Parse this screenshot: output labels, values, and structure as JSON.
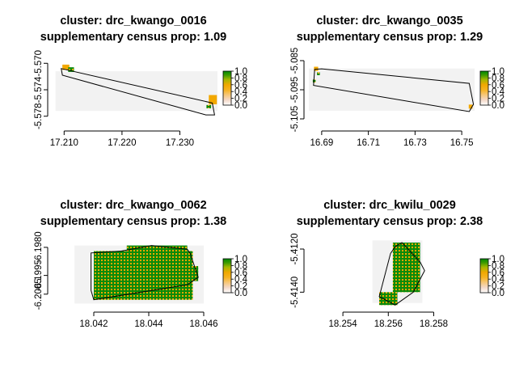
{
  "chart_data": [
    {
      "type": "heatmap",
      "title": "cluster: drc_kwango_0016",
      "subtitle": "supplementary census prop: 1.09",
      "xlim": [
        17.208,
        17.2365
      ],
      "ylim": [
        -5.5795,
        -5.5685
      ],
      "raster_extent": {
        "x": [
          17.2085,
          17.2365
        ],
        "y": [
          -5.5772,
          -5.5712
        ]
      },
      "xticks": [
        {
          "value": 17.21,
          "label": "17.210"
        },
        {
          "value": 17.22,
          "label": "17.220"
        },
        {
          "value": 17.23,
          "label": "17.230"
        }
      ],
      "yticks": [
        {
          "value": -5.57,
          "label": "-5.570"
        },
        {
          "value": -5.574,
          "label": "-5.574"
        },
        {
          "value": -5.578,
          "label": "-5.578"
        }
      ],
      "boundary": [
        [
          17.2095,
          -5.5708
        ],
        [
          17.2356,
          -5.576
        ],
        [
          17.236,
          -5.5778
        ],
        [
          17.2345,
          -5.5778
        ],
        [
          17.2097,
          -5.5718
        ]
      ],
      "cells": [
        {
          "x": 17.2097,
          "y": -5.571,
          "w": 0.0012,
          "h": 0.0008,
          "v": 0.2
        },
        {
          "x": 17.2107,
          "y": -5.5713,
          "w": 0.001,
          "h": 0.0007,
          "v": 0.8
        },
        {
          "x": 17.235,
          "y": -5.5762,
          "w": 0.0014,
          "h": 0.0014,
          "v": 0.2
        },
        {
          "x": 17.2346,
          "y": -5.5768,
          "w": 0.0008,
          "h": 0.0005,
          "v": 0.8
        }
      ],
      "legend": {
        "ticks": [
          0.0,
          0.2,
          0.4,
          0.6,
          0.8,
          1.0
        ]
      }
    },
    {
      "type": "heatmap",
      "title": "cluster: drc_kwango_0035",
      "subtitle": "supplementary census prop: 1.29",
      "xlim": [
        16.6845,
        16.7555
      ],
      "ylim": [
        -5.1075,
        -5.0825
      ],
      "raster_extent": {
        "x": [
          16.6845,
          16.7555
        ],
        "y": [
          -5.1022,
          -5.0877
        ]
      },
      "xticks": [
        {
          "value": 16.69,
          "label": "16.69"
        },
        {
          "value": 16.71,
          "label": "16.71"
        },
        {
          "value": 16.73,
          "label": "16.73"
        },
        {
          "value": 16.75,
          "label": "16.75"
        }
      ],
      "yticks": [
        {
          "value": -5.085,
          "label": "-5.085"
        },
        {
          "value": -5.095,
          "label": "-5.095"
        },
        {
          "value": -5.105,
          "label": "-5.105"
        }
      ],
      "boundary": [
        [
          16.687,
          -5.088
        ],
        [
          16.69,
          -5.0878
        ],
        [
          16.7532,
          -5.0928
        ],
        [
          16.755,
          -5.1
        ],
        [
          16.7532,
          -5.1025
        ],
        [
          16.6865,
          -5.0935
        ]
      ],
      "cells": [
        {
          "x": 16.6867,
          "y": -5.0885,
          "w": 0.0018,
          "h": 0.0014,
          "v": 0.2
        },
        {
          "x": 16.688,
          "y": -5.09,
          "w": 0.0012,
          "h": 0.001,
          "v": 0.8
        },
        {
          "x": 16.6862,
          "y": -5.0925,
          "w": 0.0012,
          "h": 0.001,
          "v": 0.8
        },
        {
          "x": 16.753,
          "y": -5.1015,
          "w": 0.0016,
          "h": 0.0014,
          "v": 0.2
        }
      ],
      "legend": {
        "ticks": [
          0.0,
          0.2,
          0.4,
          0.6,
          0.8,
          1.0
        ]
      }
    },
    {
      "type": "heatmap",
      "title": "cluster: drc_kwango_0062",
      "subtitle": "supplementary census prop: 1.38",
      "xlim": [
        18.0405,
        18.0465
      ],
      "ylim": [
        -6.2012,
        -6.1974
      ],
      "raster_extent": {
        "x": [
          18.0413,
          18.046
        ],
        "y": [
          -6.201,
          -6.1979
        ]
      },
      "xticks": [
        {
          "value": 18.042,
          "label": "18.042"
        },
        {
          "value": 18.044,
          "label": "18.044"
        },
        {
          "value": 18.046,
          "label": "18.046"
        }
      ],
      "yticks": [
        {
          "value": -6.198,
          "label": "-6.1980"
        },
        {
          "value": -6.1995,
          "label": "-6.1995"
        },
        {
          "value": -6.2005,
          "label": "-6.2005"
        }
      ],
      "boundary": [
        [
          18.0419,
          -6.2003
        ],
        [
          18.0419,
          -6.1983
        ],
        [
          18.043,
          -6.1982
        ],
        [
          18.0441,
          -6.1979
        ],
        [
          18.0454,
          -6.1981
        ],
        [
          18.0455,
          -6.1983
        ],
        [
          18.0458,
          -6.1996
        ],
        [
          18.0454,
          -6.2
        ],
        [
          18.042,
          -6.2008
        ]
      ],
      "cells": [
        {
          "x": 18.042,
          "y": -6.2008,
          "w": 0.0036,
          "h": 0.0026,
          "v": 0.75
        },
        {
          "x": 18.0432,
          "y": -6.1984,
          "w": 0.0022,
          "h": 0.0005,
          "v": 0.75
        },
        {
          "x": 18.0455,
          "y": -6.1998,
          "w": 0.0003,
          "h": 0.0008,
          "v": 0.75
        }
      ],
      "legend": {
        "ticks": [
          0.0,
          0.2,
          0.4,
          0.6,
          0.8,
          1.0
        ]
      }
    },
    {
      "type": "heatmap",
      "title": "cluster: drc_kwilu_0029",
      "subtitle": "supplementary census prop: 2.38",
      "xlim": [
        18.2525,
        18.2598
      ],
      "ylim": [
        -5.4147,
        -5.4114
      ],
      "raster_extent": {
        "x": [
          18.2553,
          18.2575
        ],
        "y": [
          -5.4145,
          -5.4116
        ]
      },
      "xticks": [
        {
          "value": 18.254,
          "label": "18.254"
        },
        {
          "value": 18.256,
          "label": "18.256"
        },
        {
          "value": 18.258,
          "label": "18.258"
        }
      ],
      "yticks": [
        {
          "value": -5.412,
          "label": "-5.4120"
        },
        {
          "value": -5.414,
          "label": "-5.4140"
        }
      ],
      "boundary": [
        [
          18.2556,
          -5.4142
        ],
        [
          18.2561,
          -5.4122
        ],
        [
          18.2563,
          -5.4119
        ],
        [
          18.2566,
          -5.4117
        ],
        [
          18.2574,
          -5.4126
        ],
        [
          18.2576,
          -5.413
        ],
        [
          18.2571,
          -5.414
        ],
        [
          18.2563,
          -5.4146
        ]
      ],
      "cells": [
        {
          "x": 18.2556,
          "y": -5.4146,
          "w": 0.0008,
          "h": 0.0006,
          "v": 0.75
        },
        {
          "x": 18.2562,
          "y": -5.414,
          "w": 0.0012,
          "h": 0.0023,
          "v": 0.75
        }
      ],
      "legend": {
        "ticks": [
          0.0,
          0.2,
          0.4,
          0.6,
          0.8,
          1.0
        ]
      }
    }
  ]
}
